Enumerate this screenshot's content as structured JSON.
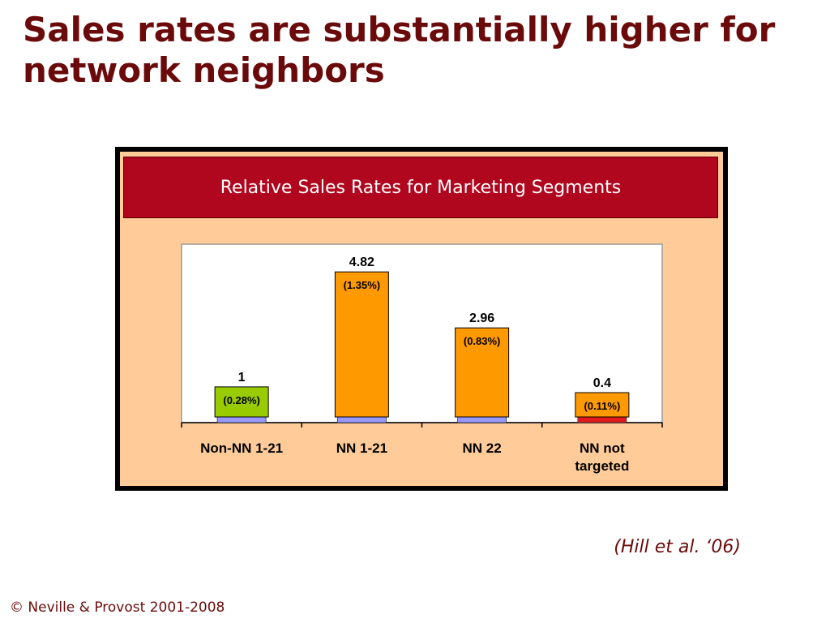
{
  "slide": {
    "title": "Sales rates are substantially higher for network neighbors",
    "citation": "(Hill et al. ‘06)",
    "footer": "© Neville & Provost 2001-2008"
  },
  "colors": {
    "title": "#6b0a0a",
    "panel_background": "#ffcc99",
    "header_background": "#b0061e",
    "bar_green": "#99cc00",
    "bar_orange": "#ff9900",
    "bar_base_blue": "#9999ff",
    "bar_base_red": "#e31a1c"
  },
  "chart_data": {
    "type": "bar",
    "title": "Relative Sales Rates for Marketing Segments",
    "categories": [
      "Non-NN 1-21",
      "NN 1-21",
      "NN 22",
      "NN not targeted"
    ],
    "values": [
      1,
      4.82,
      2.96,
      0.4
    ],
    "value_labels": [
      "1",
      "4.82",
      "2.96",
      "0.4"
    ],
    "annotations": [
      "(0.28%)",
      "(1.35%)",
      "(0.83%)",
      "(0.11%)"
    ],
    "bar_colors": [
      "#99cc00",
      "#ff9900",
      "#ff9900",
      "#ff9900"
    ],
    "base_colors": [
      "#9999ff",
      "#9999ff",
      "#9999ff",
      "#e31a1c"
    ],
    "xlabel": "",
    "ylabel": "",
    "ylim": [
      0,
      5.5
    ],
    "grid": false,
    "legend": "none"
  }
}
